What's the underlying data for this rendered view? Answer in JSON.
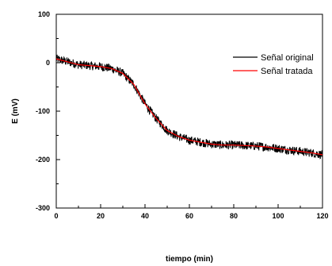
{
  "chart_data": {
    "type": "line",
    "title": "",
    "xlabel": "tiempo (min)",
    "ylabel": "E (mV)",
    "xlim": [
      0,
      120
    ],
    "ylim": [
      -300,
      100
    ],
    "xticks": [
      0,
      20,
      40,
      60,
      80,
      100,
      120
    ],
    "yticks": [
      100,
      0,
      -100,
      -200,
      -300
    ],
    "grid": false,
    "legend_position": "top-right",
    "series": [
      {
        "name": "Señal original",
        "color": "#000000",
        "style": "noisy band",
        "noise_amplitude": 9,
        "x": [
          0,
          5,
          10,
          15,
          20,
          25,
          30,
          35,
          40,
          45,
          50,
          55,
          60,
          65,
          70,
          75,
          80,
          85,
          90,
          95,
          100,
          105,
          110,
          115,
          120
        ],
        "y": [
          8,
          2,
          -4,
          -6,
          -8,
          -12,
          -22,
          -45,
          -85,
          -115,
          -140,
          -152,
          -160,
          -164,
          -168,
          -170,
          -170,
          -171,
          -172,
          -174,
          -177,
          -180,
          -183,
          -186,
          -190
        ]
      },
      {
        "name": "Señal tratada",
        "color": "#ff0000",
        "style": "line",
        "x": [
          0,
          5,
          10,
          15,
          20,
          25,
          30,
          35,
          40,
          45,
          50,
          55,
          60,
          65,
          70,
          75,
          80,
          85,
          90,
          95,
          100,
          105,
          110,
          115,
          120
        ],
        "y": [
          8,
          2,
          -4,
          -6,
          -8,
          -12,
          -22,
          -45,
          -85,
          -115,
          -140,
          -152,
          -160,
          -164,
          -168,
          -170,
          -170,
          -171,
          -172,
          -174,
          -177,
          -180,
          -183,
          -186,
          -190
        ]
      }
    ]
  }
}
